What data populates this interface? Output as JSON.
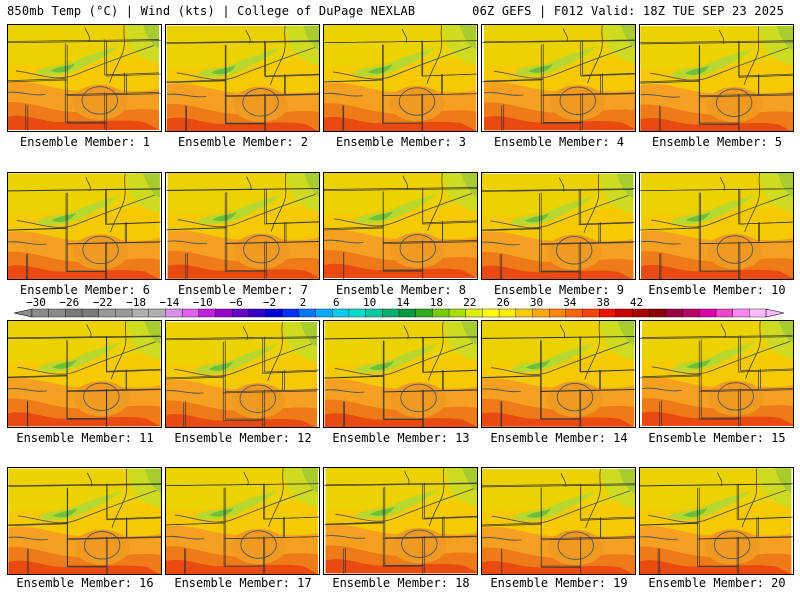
{
  "header": {
    "left_title": "850mb Temp (°C) | Wind (kts) | College of DuPage NEXLAB",
    "right_title": "06Z GEFS | F012 Valid: 18Z TUE SEP 23 2025"
  },
  "members": [
    {
      "label": "Ensemble Member: 1"
    },
    {
      "label": "Ensemble Member: 2"
    },
    {
      "label": "Ensemble Member: 3"
    },
    {
      "label": "Ensemble Member: 4"
    },
    {
      "label": "Ensemble Member: 5"
    },
    {
      "label": "Ensemble Member: 6"
    },
    {
      "label": "Ensemble Member: 7"
    },
    {
      "label": "Ensemble Member: 8"
    },
    {
      "label": "Ensemble Member: 9"
    },
    {
      "label": "Ensemble Member: 10"
    },
    {
      "label": "Ensemble Member: 11"
    },
    {
      "label": "Ensemble Member: 12"
    },
    {
      "label": "Ensemble Member: 13"
    },
    {
      "label": "Ensemble Member: 14"
    },
    {
      "label": "Ensemble Member: 15"
    },
    {
      "label": "Ensemble Member: 16"
    },
    {
      "label": "Ensemble Member: 17"
    },
    {
      "label": "Ensemble Member: 18"
    },
    {
      "label": "Ensemble Member: 19"
    },
    {
      "label": "Ensemble Member: 20"
    }
  ],
  "colorbar": {
    "tick_labels": [
      "−30",
      "−26",
      "−22",
      "−18",
      "−14",
      "−10",
      "−6",
      "−2",
      "2",
      "6",
      "10",
      "14",
      "18",
      "22",
      "26",
      "30",
      "34",
      "38",
      "42"
    ],
    "colors": [
      "#8a8a8a",
      "#8a8a8a",
      "#7a7a7a",
      "#7a7a7a",
      "#999999",
      "#999999",
      "#b0b0b0",
      "#b0b0b0",
      "#d890e8",
      "#e060f0",
      "#c020e0",
      "#9900cc",
      "#6600cc",
      "#3300cc",
      "#0000dd",
      "#0033ff",
      "#0077ff",
      "#00aaff",
      "#00ccee",
      "#00ddcc",
      "#00c8a0",
      "#00b070",
      "#009944",
      "#33aa22",
      "#77cc00",
      "#aadd00",
      "#ddee00",
      "#ffff00",
      "#ffee00",
      "#ffcc00",
      "#ffaa00",
      "#ff8800",
      "#ff6600",
      "#ff4400",
      "#ee1100",
      "#cc0000",
      "#aa0000",
      "#880000",
      "#990044",
      "#bb0066",
      "#dd00aa",
      "#ee44cc",
      "#ff88ee",
      "#ffbbff"
    ]
  }
}
